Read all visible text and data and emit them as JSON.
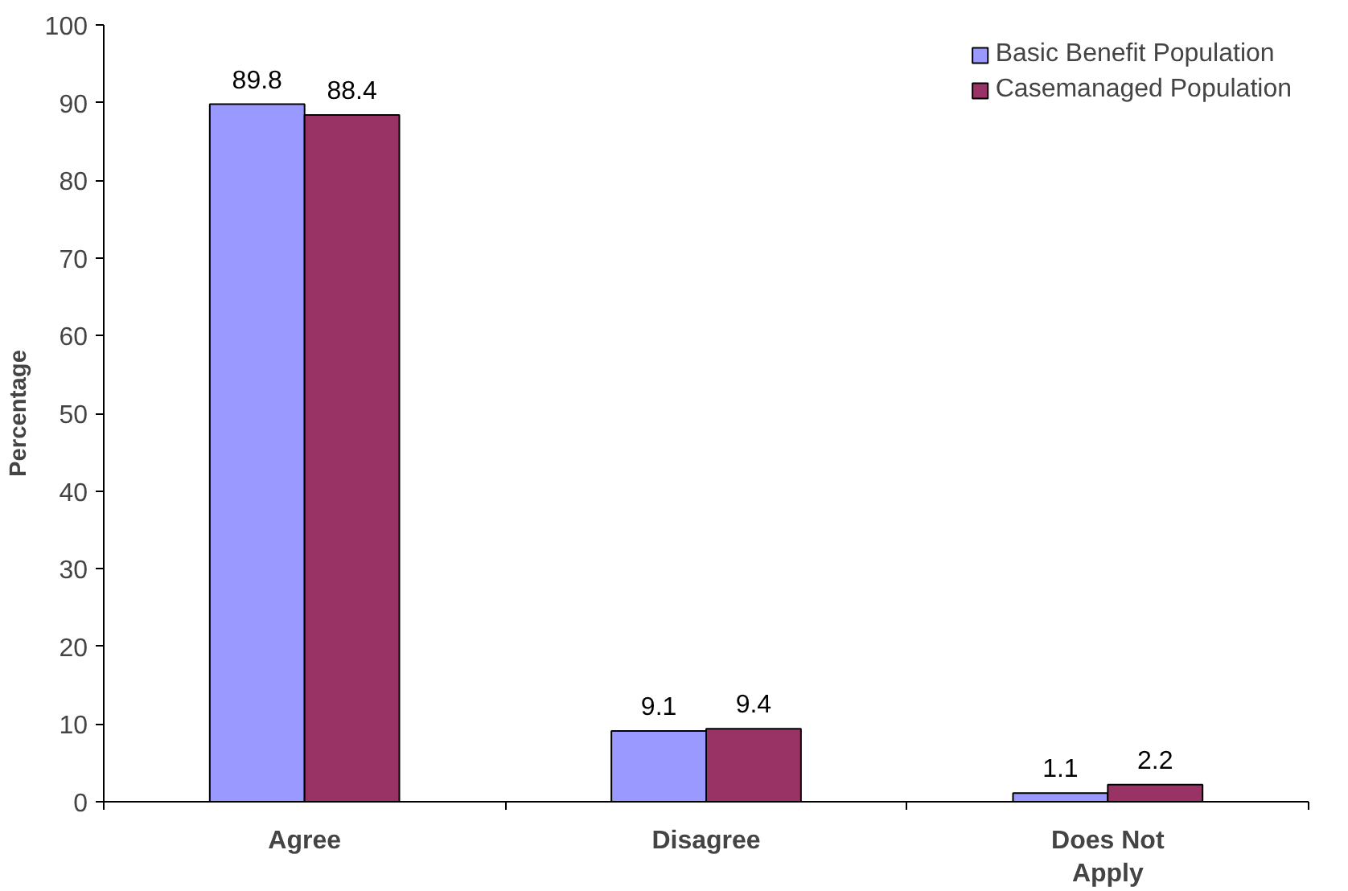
{
  "chart_data": {
    "type": "bar",
    "ylabel": "Percentage",
    "categories": [
      "Agree",
      "Disagree",
      "Does Not Apply"
    ],
    "series": [
      {
        "name": "Basic Benefit Population",
        "color": "#9999ff",
        "values": [
          89.8,
          9.1,
          1.1
        ]
      },
      {
        "name": "Casemanaged Population",
        "color": "#993366",
        "values": [
          88.4,
          9.4,
          2.2
        ]
      }
    ],
    "ylim": [
      0,
      100
    ],
    "yticks": [
      0,
      10,
      20,
      30,
      40,
      50,
      60,
      70,
      80,
      90,
      100
    ],
    "data_labels": true,
    "grid": false,
    "legend": "top right"
  }
}
